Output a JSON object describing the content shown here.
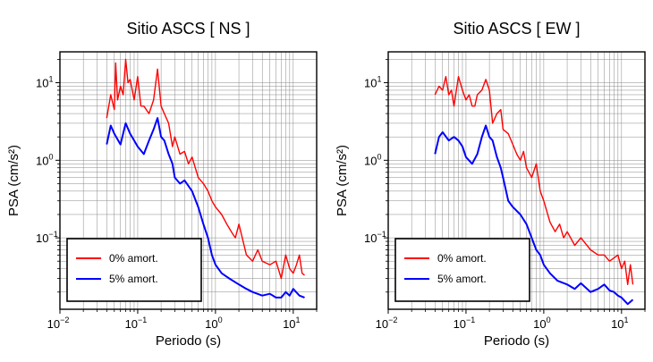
{
  "chart_data": [
    {
      "type": "line",
      "title": "Sitio ASCS [ NS ]",
      "xlabel": "Periodo (s)",
      "ylabel": "PSA (cm/s²)",
      "xscale": "log",
      "yscale": "log",
      "xlim": [
        0.01,
        20
      ],
      "ylim": [
        0.012,
        25
      ],
      "grid": true,
      "legend_placement": "bottom-left",
      "x_ticks": [
        {
          "value": 0.01,
          "base": "10",
          "exp": "−2"
        },
        {
          "value": 0.1,
          "base": "10",
          "exp": "−1"
        },
        {
          "value": 1,
          "base": "10",
          "exp": "0"
        },
        {
          "value": 10,
          "base": "10",
          "exp": "1"
        }
      ],
      "y_ticks": [
        {
          "value": 0.1,
          "base": "10",
          "exp": "−1"
        },
        {
          "value": 1,
          "base": "10",
          "exp": "0"
        },
        {
          "value": 10,
          "base": "10",
          "exp": "1"
        }
      ],
      "series": [
        {
          "name": "0% amort.",
          "color": "#ff0000",
          "x": [
            0.04,
            0.045,
            0.05,
            0.052,
            0.055,
            0.06,
            0.065,
            0.07,
            0.075,
            0.08,
            0.09,
            0.1,
            0.11,
            0.12,
            0.14,
            0.16,
            0.18,
            0.2,
            0.22,
            0.25,
            0.28,
            0.3,
            0.35,
            0.4,
            0.45,
            0.5,
            0.6,
            0.7,
            0.8,
            0.9,
            1.0,
            1.2,
            1.4,
            1.6,
            1.8,
            2.0,
            2.5,
            3.0,
            3.5,
            4.0,
            5.0,
            6.0,
            7.0,
            8.0,
            9.0,
            10.0,
            11.0,
            12.0,
            13.0,
            14.0
          ],
          "values": [
            3.5,
            7.0,
            4.5,
            18.0,
            6.0,
            9.0,
            7.0,
            20.0,
            10.0,
            11.0,
            6.0,
            12.0,
            5.0,
            5.0,
            4.0,
            6.0,
            15.0,
            5.0,
            4.0,
            3.0,
            1.5,
            2.0,
            1.2,
            1.3,
            0.9,
            1.1,
            0.6,
            0.5,
            0.4,
            0.3,
            0.25,
            0.2,
            0.15,
            0.12,
            0.1,
            0.15,
            0.06,
            0.05,
            0.07,
            0.05,
            0.045,
            0.05,
            0.03,
            0.06,
            0.04,
            0.035,
            0.045,
            0.06,
            0.035,
            0.033
          ]
        },
        {
          "name": "5% amort.",
          "color": "#0000ff",
          "x": [
            0.04,
            0.045,
            0.05,
            0.06,
            0.07,
            0.08,
            0.09,
            0.1,
            0.12,
            0.14,
            0.16,
            0.18,
            0.2,
            0.22,
            0.25,
            0.28,
            0.3,
            0.35,
            0.4,
            0.5,
            0.6,
            0.7,
            0.8,
            0.9,
            1.0,
            1.2,
            1.5,
            2.0,
            2.5,
            3.0,
            4.0,
            5.0,
            6.0,
            7.0,
            8.0,
            9.0,
            10.0,
            12.0,
            14.0
          ],
          "values": [
            1.6,
            2.8,
            2.2,
            1.6,
            3.0,
            2.2,
            1.8,
            1.5,
            1.2,
            1.8,
            2.5,
            3.5,
            2.0,
            1.8,
            1.2,
            0.9,
            0.6,
            0.5,
            0.55,
            0.4,
            0.25,
            0.15,
            0.1,
            0.06,
            0.045,
            0.035,
            0.03,
            0.025,
            0.022,
            0.02,
            0.018,
            0.019,
            0.017,
            0.017,
            0.02,
            0.018,
            0.022,
            0.018,
            0.017
          ]
        }
      ]
    },
    {
      "type": "line",
      "title": "Sitio ASCS [ EW ]",
      "xlabel": "Periodo (s)",
      "ylabel": "PSA (cm/s²)",
      "xscale": "log",
      "yscale": "log",
      "xlim": [
        0.01,
        20
      ],
      "ylim": [
        0.012,
        25
      ],
      "grid": true,
      "legend_placement": "bottom-left",
      "x_ticks": [
        {
          "value": 0.01,
          "base": "10",
          "exp": "−2"
        },
        {
          "value": 0.1,
          "base": "10",
          "exp": "−1"
        },
        {
          "value": 1,
          "base": "10",
          "exp": "0"
        },
        {
          "value": 10,
          "base": "10",
          "exp": "1"
        }
      ],
      "y_ticks": [
        {
          "value": 0.1,
          "base": "10",
          "exp": "−1"
        },
        {
          "value": 1,
          "base": "10",
          "exp": "0"
        },
        {
          "value": 10,
          "base": "10",
          "exp": "1"
        }
      ],
      "series": [
        {
          "name": "0% amort.",
          "color": "#ff0000",
          "x": [
            0.04,
            0.045,
            0.05,
            0.055,
            0.06,
            0.065,
            0.07,
            0.08,
            0.09,
            0.1,
            0.11,
            0.12,
            0.13,
            0.14,
            0.16,
            0.18,
            0.2,
            0.22,
            0.25,
            0.28,
            0.3,
            0.35,
            0.4,
            0.45,
            0.5,
            0.55,
            0.6,
            0.7,
            0.8,
            0.9,
            1.0,
            1.2,
            1.4,
            1.6,
            1.8,
            2.0,
            2.5,
            3.0,
            4.0,
            5.0,
            6.0,
            7.0,
            8.0,
            9.0,
            10.0,
            11.0,
            12.0,
            13.0,
            14.0
          ],
          "values": [
            7.0,
            9.0,
            8.0,
            12.0,
            7.0,
            8.0,
            5.0,
            12.0,
            8.0,
            6.0,
            7.0,
            5.0,
            5.0,
            7.0,
            8.0,
            11.0,
            8.0,
            3.0,
            4.0,
            4.5,
            2.5,
            2.2,
            1.6,
            1.2,
            1.0,
            1.3,
            0.8,
            0.6,
            0.9,
            0.4,
            0.3,
            0.16,
            0.12,
            0.15,
            0.1,
            0.12,
            0.08,
            0.1,
            0.07,
            0.06,
            0.06,
            0.05,
            0.055,
            0.06,
            0.04,
            0.05,
            0.025,
            0.045,
            0.025
          ]
        },
        {
          "name": "5% amort.",
          "color": "#0000ff",
          "x": [
            0.04,
            0.045,
            0.05,
            0.06,
            0.07,
            0.08,
            0.09,
            0.1,
            0.12,
            0.14,
            0.16,
            0.18,
            0.2,
            0.22,
            0.25,
            0.28,
            0.3,
            0.35,
            0.4,
            0.5,
            0.6,
            0.7,
            0.8,
            0.9,
            1.0,
            1.2,
            1.5,
            2.0,
            2.5,
            3.0,
            4.0,
            5.0,
            6.0,
            7.0,
            8.0,
            9.0,
            10.0,
            12.0,
            14.0
          ],
          "values": [
            1.2,
            2.0,
            2.3,
            1.8,
            2.0,
            1.8,
            1.5,
            1.1,
            0.9,
            1.2,
            2.0,
            2.8,
            2.0,
            1.8,
            1.1,
            0.8,
            0.6,
            0.3,
            0.25,
            0.2,
            0.15,
            0.1,
            0.07,
            0.06,
            0.045,
            0.035,
            0.028,
            0.025,
            0.022,
            0.026,
            0.02,
            0.022,
            0.025,
            0.021,
            0.02,
            0.018,
            0.017,
            0.014,
            0.016
          ]
        }
      ]
    }
  ]
}
